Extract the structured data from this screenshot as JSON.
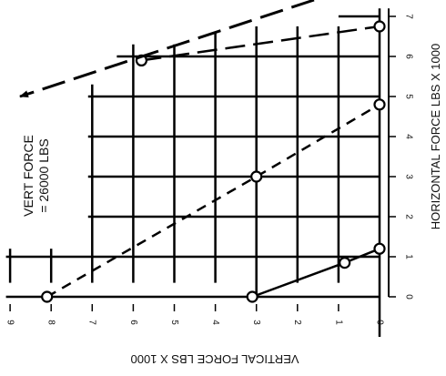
{
  "chart_data": {
    "type": "line",
    "xlabel": "VERTICAL FORCE LBS X 1000",
    "ylabel": "HORIZONTAL FORCE LBS X 1000",
    "x_ticks": [
      "9",
      "8",
      "7",
      "6",
      "5",
      "4",
      "3",
      "2",
      "1",
      "0"
    ],
    "y_ticks": [
      "0",
      "1",
      "2",
      "3",
      "4",
      "5",
      "6",
      "7"
    ],
    "xlim": [
      9,
      0
    ],
    "ylim": [
      0,
      7
    ],
    "grid": true,
    "series": [
      {
        "style": "solid",
        "points": [
          [
            3.1,
            0
          ],
          [
            0.85,
            0.85
          ],
          [
            0,
            1.2
          ]
        ]
      },
      {
        "style": "short-dash",
        "points": [
          [
            8.1,
            0
          ],
          [
            3.0,
            3.0
          ],
          [
            0,
            4.8
          ]
        ]
      },
      {
        "style": "long-dash",
        "points": [
          [
            5.8,
            5.9
          ],
          [
            0,
            6.75
          ]
        ]
      }
    ],
    "annotation": {
      "line1": "VERT FORCE",
      "line2": "= 26000 LBS"
    }
  }
}
